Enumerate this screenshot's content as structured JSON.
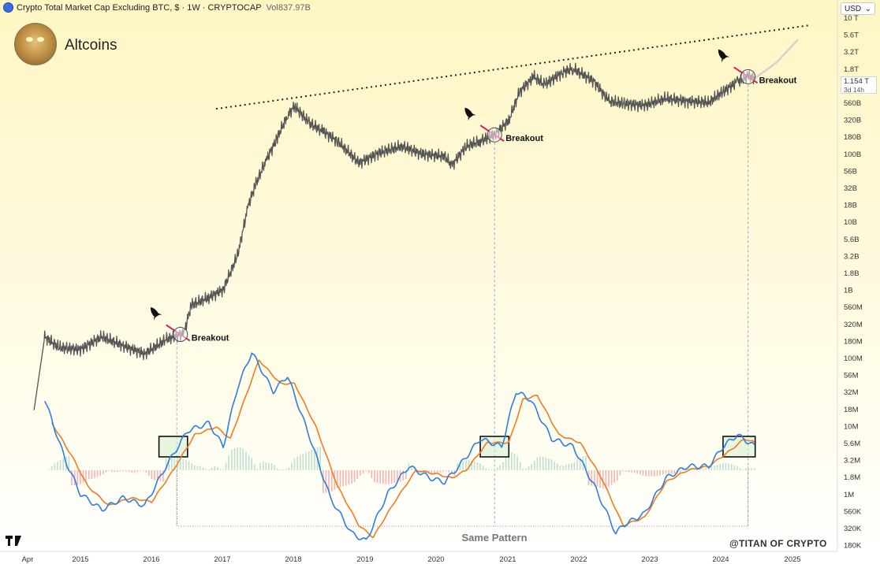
{
  "header": {
    "symbol_title": "Crypto Total Market Cap Excluding BTC, $ · 1W · CRYPTOCAP",
    "volume": "Vol837.97B"
  },
  "brand": {
    "title": "Altcoins",
    "watermark": "@TITAN OF CRYPTO",
    "tv_logo": "TradingView logo"
  },
  "price_scale": {
    "currency": "USD",
    "last_value": "1.154 T",
    "countdown": "3d 14h"
  },
  "annotations": {
    "breakout_label": "Breakout",
    "pattern_label": "Same Pattern",
    "breakout_count": 3,
    "icons": [
      "rocket-icon",
      "rocket-icon",
      "rocket-icon"
    ]
  },
  "colors": {
    "background_top": "#fff6c4",
    "price_line": "#555555",
    "macd_line": "#2e7de0",
    "signal_line": "#f07c1e",
    "hist_pos": "#bfe0d0",
    "hist_neg": "#f4b4b0",
    "breakout_stroke": "#d81b60",
    "highlight_fill": "#d4f0cf"
  },
  "chart_data": {
    "type": "line",
    "scale": "log",
    "x_ticks": [
      "Apr",
      "2015",
      "2016",
      "2017",
      "2018",
      "2019",
      "2020",
      "2021",
      "2022",
      "2023",
      "2024",
      "2025"
    ],
    "y_ticks": [
      "10 T",
      "5.6T",
      "3.2T",
      "1.8T",
      "1 T",
      "560B",
      "320B",
      "180B",
      "100B",
      "56B",
      "32B",
      "18B",
      "10B",
      "5.6B",
      "3.2B",
      "1.8B",
      "1B",
      "560M",
      "320M",
      "180M",
      "100M",
      "56M",
      "32M",
      "18M",
      "10M",
      "5.6M",
      "3.2M",
      "1.8M",
      "1M",
      "560K",
      "320K",
      "180K"
    ],
    "price_series": {
      "name": "Crypto Total Market Cap Excluding BTC",
      "x": [
        2014.35,
        2014.5,
        2014.7,
        2015.0,
        2015.3,
        2015.6,
        2015.9,
        2016.2,
        2016.45,
        2016.55,
        2016.8,
        2017.0,
        2017.2,
        2017.35,
        2017.45,
        2017.6,
        2017.75,
        2017.9,
        2018.0,
        2018.2,
        2018.4,
        2018.6,
        2018.9,
        2019.2,
        2019.5,
        2019.8,
        2020.1,
        2020.2,
        2020.4,
        2020.6,
        2020.8,
        2021.0,
        2021.15,
        2021.35,
        2021.5,
        2021.75,
        2021.9,
        2022.2,
        2022.4,
        2022.6,
        2022.9,
        2023.2,
        2023.5,
        2023.8,
        2024.0,
        2024.2,
        2024.35,
        2024.45
      ],
      "y": [
        8000000,
        110000000,
        75000000,
        70000000,
        110000000,
        80000000,
        60000000,
        100000000,
        125000000,
        340000000,
        450000000,
        600000000,
        2000000000,
        12000000000,
        25000000000,
        60000000000,
        130000000000,
        300000000000,
        420000000000,
        230000000000,
        170000000000,
        120000000000,
        55000000000,
        80000000000,
        100000000000,
        75000000000,
        70000000000,
        50000000000,
        100000000000,
        120000000000,
        150000000000,
        250000000000,
        700000000000,
        1200000000000,
        900000000000,
        1400000000000,
        1600000000000,
        1000000000000,
        500000000000,
        460000000000,
        430000000000,
        550000000000,
        500000000000,
        480000000000,
        700000000000,
        1000000000000,
        1200000000000,
        1154000000000
      ]
    },
    "projection_series": {
      "name": "projection",
      "x": [
        2024.45,
        2024.6,
        2024.75,
        2024.9,
        2025.05
      ],
      "y": [
        1154000000000,
        1500000000000,
        2000000000000,
        3000000000000,
        4500000000000
      ]
    },
    "trendline": {
      "x": [
        2016.9,
        2025.2
      ],
      "y": [
        380000000000,
        7500000000000
      ]
    },
    "breakouts": [
      {
        "x": 2016.4,
        "y": 120000000
      },
      {
        "x": 2020.8,
        "y": 150000000000
      },
      {
        "x": 2024.35,
        "y": 1200000000000
      }
    ],
    "breakout_drop_lines_x": [
      2016.35,
      2020.8,
      2024.35
    ],
    "pattern_boxes": [
      {
        "x": [
          2016.1,
          2016.5
        ]
      },
      {
        "x": [
          2020.6,
          2021.0
        ]
      },
      {
        "x": [
          2024.0,
          2024.45
        ]
      }
    ],
    "macd_series": {
      "name": "MACD",
      "x": [
        2014.5,
        2014.8,
        2015.0,
        2015.3,
        2015.6,
        2015.9,
        2016.2,
        2016.5,
        2016.8,
        2017.0,
        2017.2,
        2017.4,
        2017.7,
        2017.9,
        2018.2,
        2018.5,
        2018.8,
        2019.0,
        2019.3,
        2019.6,
        2019.9,
        2020.1,
        2020.3,
        2020.6,
        2020.9,
        2021.1,
        2021.3,
        2021.6,
        2021.9,
        2022.2,
        2022.5,
        2022.6,
        2022.9,
        2023.2,
        2023.5,
        2023.8,
        2024.0,
        2024.2,
        2024.45
      ],
      "y": [
        0.9,
        0.1,
        -0.3,
        -0.5,
        -0.35,
        -0.45,
        0.05,
        0.5,
        0.6,
        0.3,
        1.05,
        1.5,
        1.0,
        1.2,
        0.45,
        -0.35,
        -0.8,
        -0.9,
        -0.3,
        0.05,
        -0.1,
        -0.15,
        0.05,
        0.4,
        0.3,
        1.0,
        0.9,
        0.4,
        0.3,
        -0.2,
        -0.8,
        -0.7,
        -0.55,
        -0.1,
        0.05,
        0.05,
        0.3,
        0.45,
        0.3
      ]
    },
    "signal_series": {
      "name": "Signal",
      "x": [
        2014.6,
        2014.9,
        2015.1,
        2015.4,
        2015.7,
        2016.0,
        2016.3,
        2016.6,
        2016.9,
        2017.1,
        2017.3,
        2017.5,
        2017.8,
        2018.0,
        2018.3,
        2018.6,
        2018.9,
        2019.1,
        2019.4,
        2019.7,
        2020.0,
        2020.2,
        2020.4,
        2020.7,
        2021.0,
        2021.2,
        2021.4,
        2021.7,
        2022.0,
        2022.3,
        2022.6,
        2022.9,
        2023.2,
        2023.5,
        2023.8,
        2024.1,
        2024.3,
        2024.45
      ],
      "y": [
        0.6,
        0.15,
        -0.2,
        -0.45,
        -0.35,
        -0.4,
        0.0,
        0.45,
        0.55,
        0.4,
        0.9,
        1.4,
        1.1,
        1.1,
        0.55,
        -0.2,
        -0.7,
        -0.85,
        -0.4,
        0.0,
        -0.05,
        -0.1,
        0.0,
        0.35,
        0.35,
        0.9,
        0.95,
        0.45,
        0.35,
        -0.1,
        -0.7,
        -0.6,
        -0.15,
        0.0,
        0.05,
        0.25,
        0.4,
        0.35
      ]
    }
  }
}
